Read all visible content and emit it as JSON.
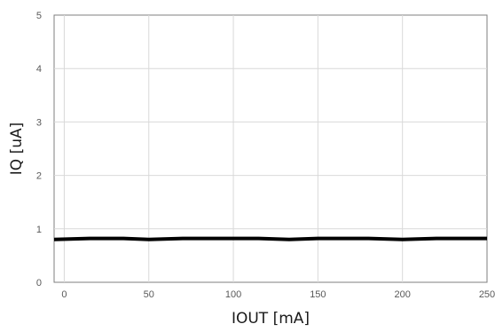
{
  "chart_data": {
    "type": "line",
    "xlabel": "IOUT [mA]",
    "ylabel": "IQ [uA]",
    "xlim": [
      -6,
      250
    ],
    "ylim": [
      0,
      5
    ],
    "xticks": [
      0,
      50,
      100,
      150,
      200,
      250
    ],
    "yticks": [
      0,
      1,
      2,
      3,
      4,
      5
    ],
    "grid": true,
    "legend": "none",
    "series": [
      {
        "color": "#000000",
        "x": [
          -6,
          15,
          35,
          50,
          70,
          100,
          115,
          133,
          150,
          180,
          200,
          220,
          250
        ],
        "y": [
          0.8,
          0.82,
          0.82,
          0.8,
          0.82,
          0.82,
          0.82,
          0.8,
          0.82,
          0.82,
          0.8,
          0.82,
          0.82
        ]
      }
    ]
  }
}
